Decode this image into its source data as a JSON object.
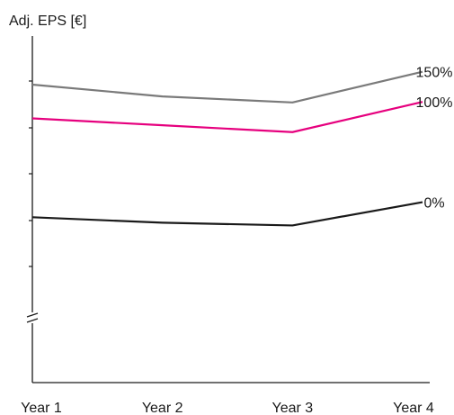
{
  "chart_data": {
    "type": "line",
    "title": "",
    "ylabel": "Adj. EPS [€]",
    "xlabel": "",
    "categories": [
      "Year 1",
      "Year 2",
      "Year 3",
      "Year 4"
    ],
    "y_axis_break": true,
    "ylim": [
      0,
      100
    ],
    "grid": false,
    "legend": "inline-right",
    "series": [
      {
        "name": "150%",
        "color": "#7a7a7a",
        "values": [
          82.3,
          78.0,
          75.8,
          87.0
        ]
      },
      {
        "name": "100%",
        "color": "#e6007e",
        "values": [
          70.0,
          67.5,
          65.0,
          76.0
        ]
      },
      {
        "name": "0%",
        "color": "#1a1a1a",
        "values": [
          34.0,
          32.0,
          31.0,
          39.5
        ]
      }
    ]
  }
}
